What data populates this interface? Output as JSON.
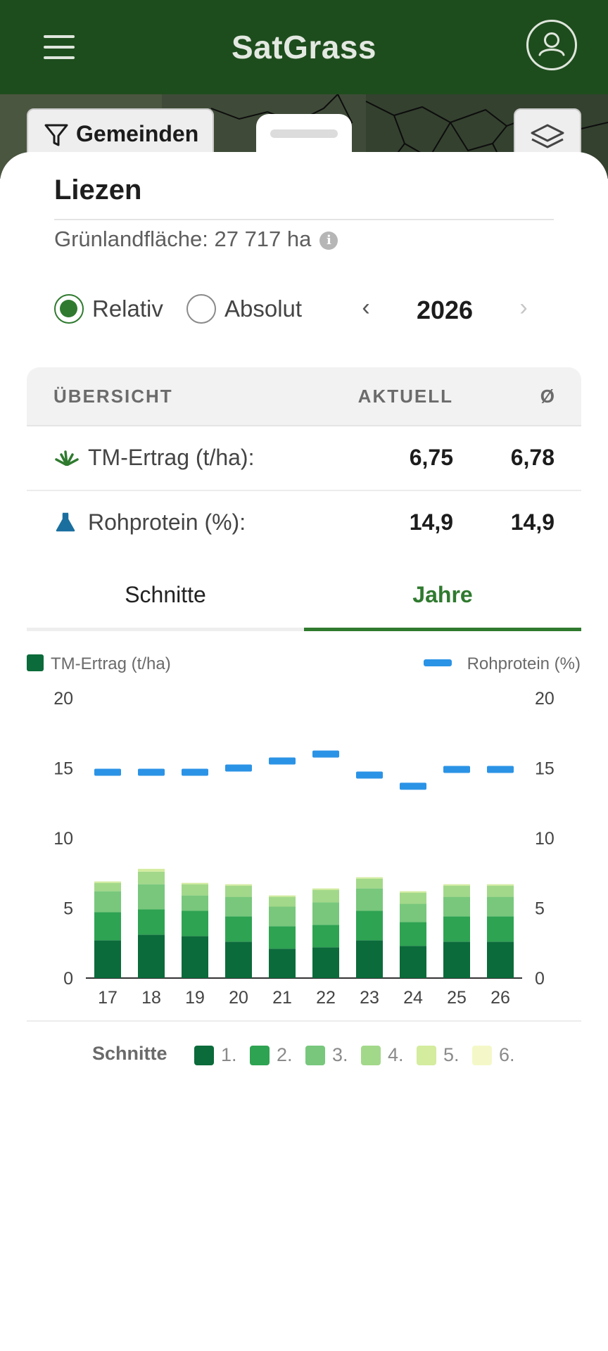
{
  "app": {
    "title": "SatGrass"
  },
  "map": {
    "filter_label": "Gemeinden"
  },
  "region": {
    "name": "Liezen",
    "area_label": "Grünlandfläche: 27 717 ha",
    "info_icon": "i"
  },
  "mode": {
    "relative_label": "Relativ",
    "absolute_label": "Absolut",
    "selected": "Relativ"
  },
  "year": {
    "value": "2026",
    "prev": "‹",
    "next": "›"
  },
  "overview": {
    "headers": {
      "title": "ÜBERSICHT",
      "current": "AKTUELL",
      "avg": "Ø"
    },
    "rows": [
      {
        "label": "TM-Ertrag (t/ha):",
        "current": "6,75",
        "avg": "6,78",
        "icon": "grass-icon"
      },
      {
        "label": "Rohprotein (%):",
        "current": "14,9",
        "avg": "14,9",
        "icon": "flask-icon"
      }
    ]
  },
  "tabs": [
    {
      "label": "Schnitte"
    },
    {
      "label": "Jahre"
    }
  ],
  "active_tab": "Jahre",
  "legend": {
    "tm": "TM-Ertrag (t/ha)",
    "rp": "Rohprotein (%)"
  },
  "cuts_legend": {
    "title": "Schnitte",
    "items": [
      {
        "label": "1.",
        "color": "#0b6b3a"
      },
      {
        "label": "2.",
        "color": "#2ea352"
      },
      {
        "label": "3.",
        "color": "#78c77c"
      },
      {
        "label": "4.",
        "color": "#a2d88a"
      },
      {
        "label": "5.",
        "color": "#d3ec9e"
      },
      {
        "label": "6.",
        "color": "#f4f8c8"
      }
    ]
  },
  "chart_data": {
    "type": "bar",
    "stacked": true,
    "categories": [
      "17",
      "18",
      "19",
      "20",
      "21",
      "22",
      "23",
      "24",
      "25",
      "26"
    ],
    "ylim_left": [
      0,
      20
    ],
    "ylim_right": [
      0,
      20
    ],
    "yticks": [
      "0",
      "5",
      "10",
      "15",
      "20"
    ],
    "series": [
      {
        "name": "1.",
        "color": "#0b6b3a",
        "values": [
          2.7,
          3.1,
          3.0,
          2.6,
          2.1,
          2.2,
          2.7,
          2.3,
          2.6,
          2.6
        ]
      },
      {
        "name": "2.",
        "color": "#2ea352",
        "values": [
          2.0,
          1.8,
          1.8,
          1.8,
          1.6,
          1.6,
          2.1,
          1.7,
          1.8,
          1.8
        ]
      },
      {
        "name": "3.",
        "color": "#78c77c",
        "values": [
          1.5,
          1.8,
          1.1,
          1.4,
          1.4,
          1.6,
          1.6,
          1.3,
          1.4,
          1.4
        ]
      },
      {
        "name": "4.",
        "color": "#a2d88a",
        "values": [
          0.6,
          0.9,
          0.8,
          0.8,
          0.7,
          0.9,
          0.7,
          0.8,
          0.8,
          0.8
        ]
      },
      {
        "name": "5.",
        "color": "#d3ec9e",
        "values": [
          0.1,
          0.2,
          0.1,
          0.1,
          0.1,
          0.1,
          0.1,
          0.1,
          0.1,
          0.1
        ]
      },
      {
        "name": "6.",
        "color": "#f4f8c8",
        "values": [
          0,
          0,
          0,
          0,
          0,
          0,
          0,
          0,
          0,
          0
        ]
      }
    ],
    "line_series": {
      "name": "Rohprotein (%)",
      "color": "#2b93e6",
      "values": [
        14.7,
        14.7,
        14.7,
        15.0,
        15.5,
        16.0,
        14.5,
        13.7,
        14.9,
        14.9
      ]
    }
  }
}
